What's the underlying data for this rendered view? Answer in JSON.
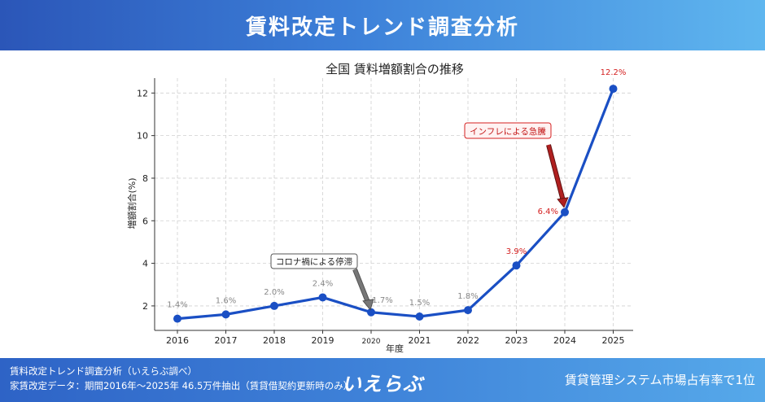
{
  "header": {
    "title": "賃料改定トレンド調査分析"
  },
  "footer": {
    "line1": "賃料改定トレンド調査分析（いえらぶ調べ）",
    "line2": "家賃改定データ：期間2016年〜2025年 46.5万件抽出（賃貸借契約更新時のみ）",
    "logo": "いえらぶ",
    "slogan": "賃貸管理システム市場占有率で1位"
  },
  "chart_data": {
    "type": "line",
    "title": "全国 賃料増額割合の推移",
    "xlabel": "年度",
    "ylabel": "増額割合(%)",
    "categories": [
      "2016",
      "2017",
      "2018",
      "2019",
      "2020",
      "2021",
      "2022",
      "2023",
      "2024",
      "2025"
    ],
    "values": [
      1.4,
      1.6,
      2.0,
      2.4,
      1.7,
      1.5,
      1.8,
      3.9,
      6.4,
      12.2
    ],
    "data_labels": [
      "1.4%",
      "1.6%",
      "2.0%",
      "2.4%",
      "1.7%",
      "1.5%",
      "1.8%",
      "3.9%",
      "6.4%",
      "12.2%"
    ],
    "ylim": [
      0.85,
      12.7
    ],
    "yticks": [
      2,
      4,
      6,
      8,
      10,
      12
    ],
    "grid": true,
    "colors": {
      "line": "#1a4fc4",
      "label_normal": "#888888",
      "label_highlight": "#d42020",
      "arrow_covid": "#777777",
      "arrow_inflation": "#b02020"
    },
    "annotations": [
      {
        "text": "コロナ禍による停滞",
        "target_index": 4
      },
      {
        "text": "インフレによる急騰",
        "target_index": 8
      }
    ]
  }
}
